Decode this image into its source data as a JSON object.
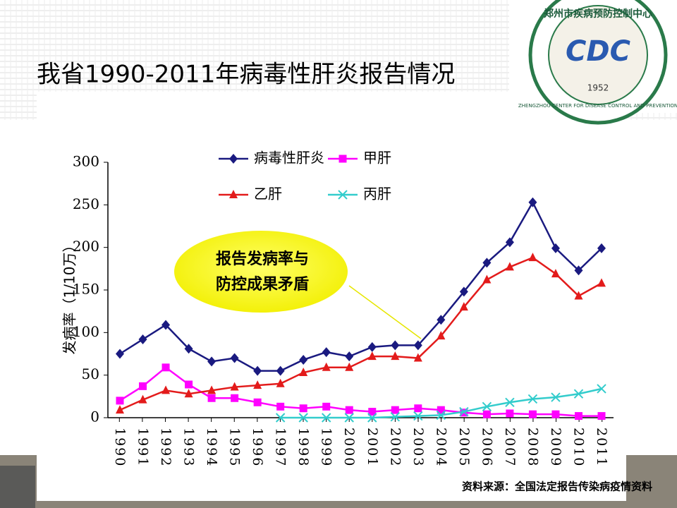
{
  "chart_data": {
    "type": "line",
    "title": "我省1990-2011年病毒性肝炎报告情况",
    "y_label": "发病率（1/10万）",
    "categories": [
      "1990",
      "1991",
      "1992",
      "1993",
      "1994",
      "1995",
      "1996",
      "1997",
      "1998",
      "1999",
      "2000",
      "2001",
      "2002",
      "2003",
      "2004",
      "2005",
      "2006",
      "2007",
      "2008",
      "2009",
      "2010",
      "2011"
    ],
    "series": [
      {
        "name": "病毒性肝炎",
        "color": "#1a1a80",
        "marker": "diamond",
        "values": [
          75,
          92,
          109,
          81,
          66,
          70,
          55,
          55,
          68,
          77,
          72,
          83,
          85,
          85,
          115,
          148,
          182,
          206,
          253,
          199,
          173,
          199
        ]
      },
      {
        "name": "甲肝",
        "color": "#ff00ff",
        "marker": "square",
        "values": [
          20,
          37,
          59,
          39,
          23,
          23,
          18,
          13,
          11,
          13,
          9,
          7,
          9,
          11,
          9,
          6,
          4,
          5,
          4,
          4,
          2,
          2
        ]
      },
      {
        "name": "乙肝",
        "color": "#e31b1b",
        "marker": "triangle",
        "values": [
          9,
          21,
          32,
          28,
          32,
          36,
          38,
          40,
          53,
          59,
          59,
          72,
          72,
          70,
          96,
          130,
          162,
          177,
          188,
          169,
          143,
          158
        ]
      },
      {
        "name": "丙肝",
        "color": "#33cccc",
        "marker": "x",
        "values": [
          null,
          null,
          null,
          null,
          null,
          null,
          null,
          0,
          0,
          0,
          0,
          0,
          1,
          2,
          3,
          7,
          13,
          18,
          22,
          24,
          28,
          34
        ]
      }
    ],
    "ylim": [
      0,
      300
    ],
    "yticks": [
      0,
      50,
      100,
      150,
      200,
      250,
      300
    ],
    "annotation": [
      "报告发病率与",
      "防控成果矛盾"
    ],
    "source": "资料来源：全国法定报告传染病疫情资料"
  },
  "logo": {
    "name": "郑州市疾病预防控制中心",
    "english": "ZHENGZHOU CENTER FOR DISEASE CONTROL AND PREVENTION",
    "mark": "CDC",
    "year": "1952"
  }
}
